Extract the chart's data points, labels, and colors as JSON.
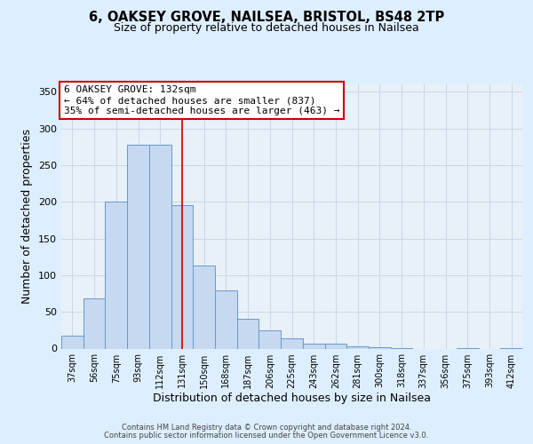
{
  "title1": "6, OAKSEY GROVE, NAILSEA, BRISTOL, BS48 2TP",
  "title2": "Size of property relative to detached houses in Nailsea",
  "xlabel": "Distribution of detached houses by size in Nailsea",
  "ylabel": "Number of detached properties",
  "bar_labels": [
    "37sqm",
    "56sqm",
    "75sqm",
    "93sqm",
    "112sqm",
    "131sqm",
    "150sqm",
    "168sqm",
    "187sqm",
    "206sqm",
    "225sqm",
    "243sqm",
    "262sqm",
    "281sqm",
    "300sqm",
    "318sqm",
    "337sqm",
    "356sqm",
    "375sqm",
    "393sqm",
    "412sqm"
  ],
  "bar_heights": [
    18,
    68,
    200,
    278,
    278,
    196,
    113,
    79,
    40,
    25,
    14,
    7,
    7,
    3,
    2,
    1,
    0,
    0,
    1,
    0,
    1
  ],
  "bar_color": "#c6d9f1",
  "bar_edge_color": "#6699cc",
  "vline_x_index": 5,
  "vline_color": "#cc0000",
  "annotation_line1": "6 OAKSEY GROVE: 132sqm",
  "annotation_line2": "← 64% of detached houses are smaller (837)",
  "annotation_line3": "35% of semi-detached houses are larger (463) →",
  "annotation_box_color": "#ffffff",
  "annotation_box_edge_color": "#cc0000",
  "ylim": [
    0,
    360
  ],
  "yticks": [
    0,
    50,
    100,
    150,
    200,
    250,
    300,
    350
  ],
  "grid_color": "#c8d8e8",
  "background_color": "#ddeeff",
  "plot_bg_color": "#e8f0f8",
  "footer1": "Contains HM Land Registry data © Crown copyright and database right 2024.",
  "footer2": "Contains public sector information licensed under the Open Government Licence v3.0."
}
